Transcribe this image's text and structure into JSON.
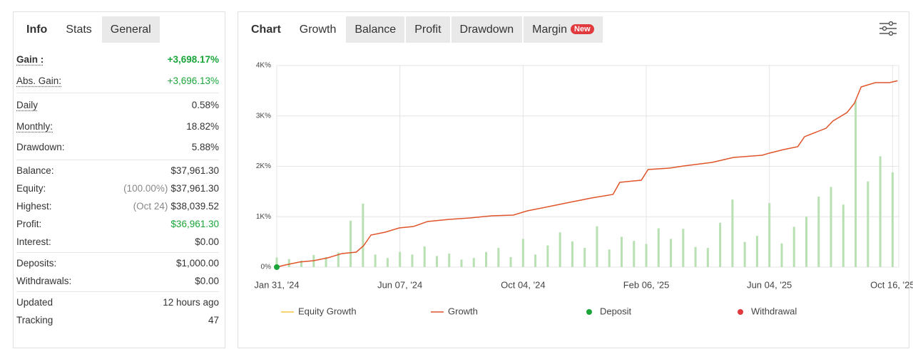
{
  "left_tabs": [
    "Info",
    "Stats",
    "General"
  ],
  "stats": [
    [
      {
        "label": "Gain :",
        "value": "+3,698.17%",
        "color": "#1aa53a",
        "bold": true,
        "underline": true
      },
      {
        "label": "Abs. Gain:",
        "value": "+3,696.13%",
        "color": "#1aa53a",
        "underline": true
      }
    ],
    [
      {
        "label": "Daily",
        "value": "0.58%",
        "underline": true
      },
      {
        "label": "Monthly:",
        "value": "18.82%",
        "underline": true
      },
      {
        "label": "Drawdown:",
        "value": "5.88%"
      }
    ],
    [
      {
        "label": "Balance:",
        "value": "$37,961.30"
      },
      {
        "label": "Equity:",
        "note": "(100.00%)",
        "value": "$37,961.30"
      },
      {
        "label": "Highest:",
        "note": "(Oct 24)",
        "value": "$38,039.52"
      },
      {
        "label": "Profit:",
        "value": "$36,961.30",
        "color": "#1aa53a"
      },
      {
        "label": "Interest:",
        "value": "$0.00"
      }
    ],
    [
      {
        "label": "Deposits:",
        "value": "$1,000.00"
      },
      {
        "label": "Withdrawals:",
        "value": "$0.00"
      }
    ],
    [
      {
        "label": "Updated",
        "value": "12 hours ago"
      },
      {
        "label": "Tracking",
        "value": "47"
      }
    ]
  ],
  "right_tabs": [
    "Chart",
    "Growth",
    "Balance",
    "Profit",
    "Drawdown",
    "Margin"
  ],
  "badge": "New",
  "chart_data": {
    "type": "line",
    "xlim": [
      0,
      101
    ],
    "xticks": [
      {
        "value": 0,
        "label": "Jan 31, '24"
      },
      {
        "value": 20,
        "label": "Jun 07, '24"
      },
      {
        "value": 40,
        "label": "Oct 04, '24"
      },
      {
        "value": 60,
        "label": "Feb 06, '25"
      },
      {
        "value": 80,
        "label": "Jun 04, '25"
      },
      {
        "value": 100,
        "label": "Oct 16, '25"
      }
    ],
    "ylim": [
      0,
      4000
    ],
    "yticks": [
      {
        "value": 0,
        "label": "0%"
      },
      {
        "value": 1000,
        "label": "1K%"
      },
      {
        "value": 2000,
        "label": "2K%"
      },
      {
        "value": 3000,
        "label": "3K%"
      },
      {
        "value": 4000,
        "label": "4K%"
      }
    ],
    "grid": true,
    "series": [
      {
        "name": "Growth",
        "color": "#e0542a",
        "x": [
          0,
          1.4,
          3.7,
          6,
          8.3,
          10.6,
          12.9,
          14.1,
          15.3,
          17.6,
          19.9,
          22.2,
          24.5,
          28,
          31.4,
          34.9,
          38.4,
          40.7,
          44.2,
          47.6,
          51.1,
          54.6,
          55.7,
          59.2,
          60.3,
          63.8,
          66.1,
          70.7,
          74.2,
          78.8,
          80,
          82.3,
          84.6,
          85.7,
          89.2,
          90.3,
          92.6,
          93.8,
          94.9,
          97.2,
          99.5,
          100.8
        ],
        "values": [
          0,
          42,
          100,
          127,
          184,
          269,
          297,
          424,
          636,
          693,
          777,
          806,
          905,
          947,
          975,
          1018,
          1032,
          1117,
          1201,
          1286,
          1371,
          1442,
          1682,
          1724,
          1936,
          1965,
          2007,
          2078,
          2177,
          2219,
          2262,
          2332,
          2389,
          2587,
          2756,
          2898,
          3067,
          3251,
          3576,
          3661,
          3661,
          3698
        ]
      }
    ],
    "bars": {
      "color": "#b8e0b2",
      "x": [
        0,
        2,
        4,
        6,
        8,
        10,
        12,
        14,
        16,
        18,
        20,
        22,
        24,
        26,
        28,
        30,
        32,
        34,
        36,
        38,
        40,
        42,
        44,
        46,
        48,
        50,
        52,
        54,
        56,
        58,
        60,
        62,
        64,
        66,
        68,
        70,
        72,
        74,
        76,
        78,
        80,
        82,
        84,
        86,
        88,
        90,
        92,
        94,
        96,
        98,
        100
      ],
      "values": [
        190,
        160,
        130,
        240,
        200,
        290,
        920,
        1260,
        250,
        180,
        300,
        250,
        410,
        220,
        270,
        150,
        180,
        300,
        380,
        200,
        560,
        250,
        430,
        690,
        510,
        380,
        810,
        350,
        600,
        520,
        460,
        770,
        560,
        760,
        400,
        380,
        880,
        1340,
        500,
        620,
        1270,
        470,
        800,
        1000,
        1400,
        1590,
        1240,
        3300,
        1700,
        2200,
        1880
      ]
    },
    "deposit": {
      "x": [
        0
      ],
      "values": [
        0
      ],
      "color": "#1aa53a"
    },
    "legend": [
      {
        "name": "Equity Growth",
        "color": "#f4c542",
        "marker": "line"
      },
      {
        "name": "Growth",
        "color": "#e0542a",
        "marker": "line"
      },
      {
        "name": "Deposit",
        "color": "#1aa53a",
        "marker": "dot"
      },
      {
        "name": "Withdrawal",
        "color": "#e0393e",
        "marker": "dot"
      }
    ]
  }
}
